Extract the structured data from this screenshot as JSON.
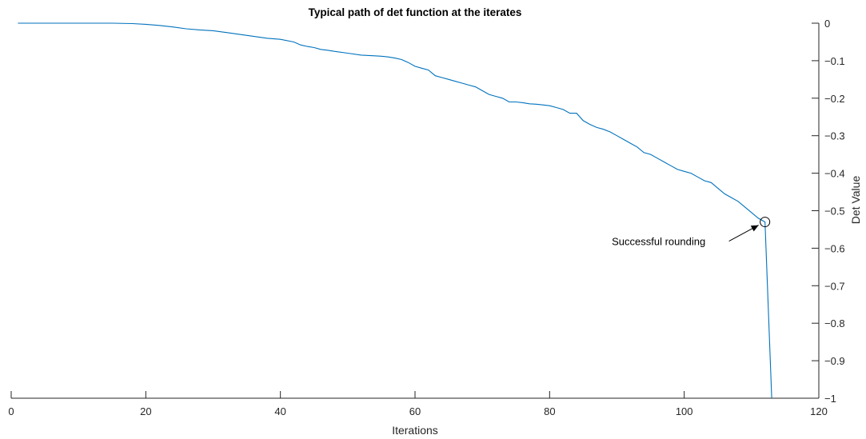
{
  "chart_data": {
    "type": "line",
    "title": "Typical path of det function at the iterates",
    "xlabel": "Iterations",
    "ylabel": "Det Value",
    "xlim": [
      0,
      120
    ],
    "ylim": [
      -1,
      0
    ],
    "y_axis_side": "right",
    "grid": false,
    "legend": "none",
    "line_color": "#0072BD",
    "xticks": [
      "0",
      "20",
      "40",
      "60",
      "80",
      "100",
      "120"
    ],
    "yticks": [
      "0",
      "-0.1",
      "-0.2",
      "-0.3",
      "-0.4",
      "-0.5",
      "-0.6",
      "-0.7",
      "-0.8",
      "-0.9",
      "-1"
    ],
    "series": [
      {
        "x": [
          1,
          5,
          10,
          15,
          18,
          20,
          22,
          24,
          26,
          28,
          30,
          32,
          34,
          36,
          38,
          40,
          42,
          43,
          44,
          45,
          46,
          47,
          48,
          50,
          52,
          54,
          55,
          56,
          57,
          58,
          59,
          60,
          61,
          62,
          63,
          64,
          65,
          66,
          67,
          68,
          69,
          70,
          71,
          72,
          73,
          74,
          75,
          76,
          77,
          78,
          79,
          80,
          81,
          82,
          83,
          84,
          85,
          86,
          87,
          88,
          89,
          90,
          91,
          92,
          93,
          94,
          95,
          96,
          97,
          98,
          99,
          100,
          101,
          102,
          103,
          104,
          105,
          106,
          107,
          108,
          109,
          110,
          111,
          112,
          113
        ],
        "y": [
          0,
          0,
          0,
          0,
          -0.001,
          -0.003,
          -0.006,
          -0.01,
          -0.015,
          -0.018,
          -0.02,
          -0.025,
          -0.03,
          -0.035,
          -0.04,
          -0.043,
          -0.05,
          -0.058,
          -0.062,
          -0.065,
          -0.07,
          -0.072,
          -0.075,
          -0.08,
          -0.085,
          -0.087,
          -0.088,
          -0.09,
          -0.093,
          -0.097,
          -0.105,
          -0.115,
          -0.12,
          -0.125,
          -0.14,
          -0.145,
          -0.15,
          -0.155,
          -0.16,
          -0.165,
          -0.17,
          -0.18,
          -0.19,
          -0.195,
          -0.2,
          -0.21,
          -0.21,
          -0.212,
          -0.215,
          -0.216,
          -0.218,
          -0.22,
          -0.225,
          -0.23,
          -0.24,
          -0.24,
          -0.26,
          -0.27,
          -0.278,
          -0.283,
          -0.29,
          -0.3,
          -0.31,
          -0.32,
          -0.33,
          -0.345,
          -0.35,
          -0.36,
          -0.37,
          -0.38,
          -0.39,
          -0.395,
          -0.4,
          -0.41,
          -0.42,
          -0.425,
          -0.44,
          -0.455,
          -0.465,
          -0.475,
          -0.49,
          -0.505,
          -0.52,
          -0.53,
          -1
        ]
      }
    ],
    "annotations": [
      {
        "text": "Successful rounding",
        "x": 112,
        "y": -0.53,
        "marker": "circle"
      }
    ]
  }
}
